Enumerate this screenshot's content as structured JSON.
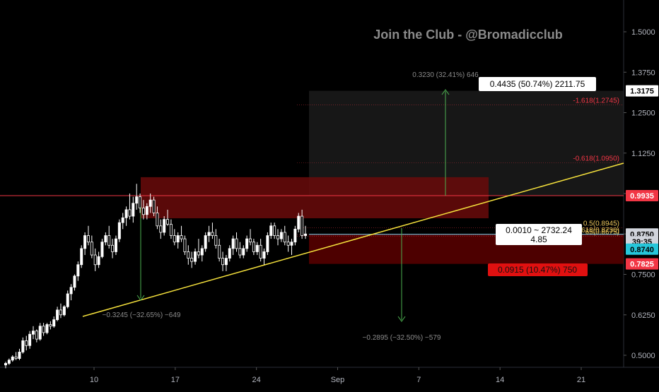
{
  "watermark": "Join the Club - @Bromadicclub",
  "colors": {
    "background": "#000000",
    "candle": "#ffffff",
    "trendline": "#f5e13c",
    "resistance_line": "#f23645",
    "current_line": "#7fd4ef",
    "stop_zone": "#5a0000",
    "resistance_zone": "#6a0b0b",
    "target_zone": "#2a2a2a",
    "fib_text": "#f23645",
    "measure": "#4caf50",
    "axis_text": "#b2b5be"
  },
  "chart_data": {
    "type": "candlestick",
    "title": "",
    "price_axis": {
      "ticks": [
        "1.5000",
        "1.3750",
        "1.2500",
        "1.1250",
        "1.0000",
        "0.8750",
        "0.7500",
        "0.6250",
        "0.5000"
      ],
      "range": [
        0.46,
        1.56
      ]
    },
    "time_axis": {
      "ticks": [
        "10",
        "17",
        "24",
        "Sep",
        "7",
        "14",
        "21"
      ]
    },
    "price_labels": [
      {
        "name": "target-price-label",
        "text": "1.3175",
        "price": 1.3175,
        "style": "white"
      },
      {
        "name": "resistance-price-label",
        "text": "0.9935",
        "price": 0.9935,
        "style": "red"
      },
      {
        "name": "current-price-label",
        "text": "0.8750",
        "price": 0.875,
        "style": "gray"
      },
      {
        "name": "countdown-label",
        "text": "39:35",
        "price": 0.851,
        "style": "gray"
      },
      {
        "name": "bid-price-label",
        "text": "0.8740",
        "price": 0.828,
        "style": "cyan"
      },
      {
        "name": "stop-price-label",
        "text": "0.7825",
        "price": 0.7825,
        "style": "red"
      }
    ],
    "fib_levels": [
      {
        "label": "-1.618(1.2745)",
        "price": 1.2745
      },
      {
        "label": "-0.618(1.0950)",
        "price": 1.095
      },
      {
        "label": "0.5(0.8945)",
        "price": 0.8945
      },
      {
        "label": "618(0.8730)",
        "price": 0.873
      },
      {
        "label": "65(0.8675)",
        "price": 0.8675
      }
    ],
    "annotations": {
      "upside_measure": "0.3230 (32.41%) 646",
      "target_box": "0.4435 (50.74%) 2211.75",
      "left_drop": "−0.3245 (−32.65%) −649",
      "projected_drop": "−0.2895 (−32.50%) −579",
      "stop_box": "0.0915 (10.47%) 750",
      "crosshair_line1": "0.0010 ~ 2732.24",
      "crosshair_line2": "4.85"
    },
    "candles": [
      [
        0.47,
        0.48,
        0.46,
        0.475
      ],
      [
        0.475,
        0.49,
        0.47,
        0.485
      ],
      [
        0.485,
        0.5,
        0.48,
        0.495
      ],
      [
        0.495,
        0.51,
        0.485,
        0.49
      ],
      [
        0.49,
        0.52,
        0.485,
        0.51
      ],
      [
        0.51,
        0.555,
        0.505,
        0.545
      ],
      [
        0.545,
        0.56,
        0.515,
        0.53
      ],
      [
        0.53,
        0.575,
        0.52,
        0.565
      ],
      [
        0.565,
        0.59,
        0.55,
        0.575
      ],
      [
        0.575,
        0.58,
        0.54,
        0.55
      ],
      [
        0.55,
        0.6,
        0.545,
        0.59
      ],
      [
        0.59,
        0.6,
        0.56,
        0.57
      ],
      [
        0.57,
        0.6,
        0.565,
        0.595
      ],
      [
        0.595,
        0.605,
        0.58,
        0.59
      ],
      [
        0.59,
        0.62,
        0.585,
        0.61
      ],
      [
        0.61,
        0.65,
        0.605,
        0.64
      ],
      [
        0.64,
        0.66,
        0.615,
        0.625
      ],
      [
        0.625,
        0.655,
        0.62,
        0.65
      ],
      [
        0.65,
        0.7,
        0.645,
        0.69
      ],
      [
        0.69,
        0.72,
        0.67,
        0.71
      ],
      [
        0.71,
        0.75,
        0.7,
        0.745
      ],
      [
        0.745,
        0.79,
        0.73,
        0.78
      ],
      [
        0.78,
        0.84,
        0.77,
        0.83
      ],
      [
        0.83,
        0.88,
        0.81,
        0.87
      ],
      [
        0.87,
        0.9,
        0.84,
        0.85
      ],
      [
        0.85,
        0.87,
        0.8,
        0.81
      ],
      [
        0.81,
        0.83,
        0.76,
        0.78
      ],
      [
        0.78,
        0.82,
        0.77,
        0.805
      ],
      [
        0.805,
        0.86,
        0.8,
        0.85
      ],
      [
        0.85,
        0.88,
        0.84,
        0.87
      ],
      [
        0.87,
        0.9,
        0.83,
        0.84
      ],
      [
        0.84,
        0.86,
        0.8,
        0.82
      ],
      [
        0.82,
        0.87,
        0.81,
        0.86
      ],
      [
        0.86,
        0.92,
        0.85,
        0.91
      ],
      [
        0.91,
        0.94,
        0.89,
        0.925
      ],
      [
        0.925,
        0.96,
        0.9,
        0.95
      ],
      [
        0.95,
        1.0,
        0.92,
        0.93
      ],
      [
        0.93,
        0.99,
        0.91,
        0.97
      ],
      [
        0.97,
        1.03,
        0.95,
        0.99
      ],
      [
        0.99,
        1.0,
        0.94,
        0.955
      ],
      [
        0.955,
        0.98,
        0.92,
        0.935
      ],
      [
        0.935,
        0.97,
        0.92,
        0.96
      ],
      [
        0.96,
        1.0,
        0.94,
        0.98
      ],
      [
        0.98,
        0.99,
        0.93,
        0.94
      ],
      [
        0.94,
        0.96,
        0.89,
        0.9
      ],
      [
        0.9,
        0.92,
        0.86,
        0.88
      ],
      [
        0.88,
        0.93,
        0.87,
        0.92
      ],
      [
        0.92,
        0.95,
        0.9,
        0.905
      ],
      [
        0.905,
        0.92,
        0.86,
        0.87
      ],
      [
        0.87,
        0.89,
        0.84,
        0.85
      ],
      [
        0.85,
        0.88,
        0.83,
        0.87
      ],
      [
        0.87,
        0.9,
        0.85,
        0.86
      ],
      [
        0.86,
        0.87,
        0.81,
        0.82
      ],
      [
        0.82,
        0.84,
        0.78,
        0.8
      ],
      [
        0.8,
        0.82,
        0.77,
        0.79
      ],
      [
        0.79,
        0.83,
        0.78,
        0.82
      ],
      [
        0.82,
        0.86,
        0.8,
        0.81
      ],
      [
        0.81,
        0.84,
        0.79,
        0.83
      ],
      [
        0.83,
        0.88,
        0.82,
        0.87
      ],
      [
        0.87,
        0.9,
        0.85,
        0.88
      ],
      [
        0.88,
        0.91,
        0.86,
        0.87
      ],
      [
        0.87,
        0.89,
        0.83,
        0.84
      ],
      [
        0.84,
        0.86,
        0.79,
        0.8
      ],
      [
        0.8,
        0.82,
        0.76,
        0.78
      ],
      [
        0.78,
        0.81,
        0.76,
        0.8
      ],
      [
        0.8,
        0.84,
        0.79,
        0.83
      ],
      [
        0.83,
        0.87,
        0.81,
        0.86
      ],
      [
        0.86,
        0.88,
        0.82,
        0.83
      ],
      [
        0.83,
        0.85,
        0.8,
        0.81
      ],
      [
        0.81,
        0.84,
        0.8,
        0.83
      ],
      [
        0.83,
        0.87,
        0.82,
        0.86
      ],
      [
        0.86,
        0.89,
        0.84,
        0.85
      ],
      [
        0.85,
        0.86,
        0.81,
        0.82
      ],
      [
        0.82,
        0.85,
        0.81,
        0.84
      ],
      [
        0.84,
        0.86,
        0.79,
        0.8
      ],
      [
        0.8,
        0.83,
        0.78,
        0.82
      ],
      [
        0.82,
        0.88,
        0.81,
        0.87
      ],
      [
        0.87,
        0.91,
        0.86,
        0.9
      ],
      [
        0.9,
        0.91,
        0.86,
        0.87
      ],
      [
        0.87,
        0.89,
        0.84,
        0.86
      ],
      [
        0.86,
        0.89,
        0.85,
        0.88
      ],
      [
        0.88,
        0.9,
        0.84,
        0.85
      ],
      [
        0.85,
        0.87,
        0.82,
        0.84
      ],
      [
        0.84,
        0.86,
        0.81,
        0.85
      ],
      [
        0.85,
        0.9,
        0.84,
        0.89
      ],
      [
        0.89,
        0.94,
        0.88,
        0.93
      ],
      [
        0.93,
        0.95,
        0.86,
        0.87
      ],
      [
        0.87,
        0.9,
        0.86,
        0.875
      ]
    ]
  }
}
